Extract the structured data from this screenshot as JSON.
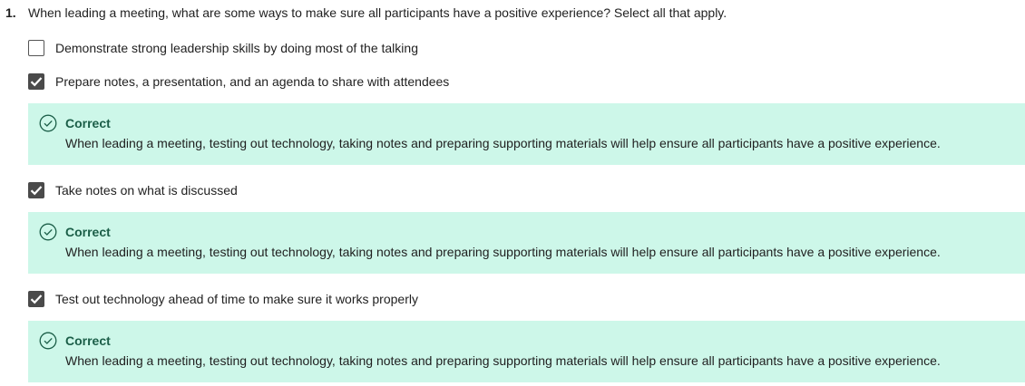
{
  "question": {
    "number": "1.",
    "text": "When leading a meeting, what are some ways to make sure all participants have a positive experience? Select all that apply."
  },
  "options": [
    {
      "label": "Demonstrate strong leadership skills by doing most of the talking",
      "checked": false
    },
    {
      "label": "Prepare notes, a presentation, and an agenda to share with attendees",
      "checked": true
    },
    {
      "label": "Take notes on what is discussed",
      "checked": true
    },
    {
      "label": "Test out technology ahead of time to make sure it works properly",
      "checked": true
    }
  ],
  "feedback": [
    {
      "title": "Correct",
      "text": "When leading a meeting, testing out technology, taking notes and preparing supporting materials will help ensure all participants have a positive experience."
    },
    {
      "title": "Correct",
      "text": "When leading a meeting, testing out technology, taking notes and preparing supporting materials will help ensure all participants have a positive experience."
    },
    {
      "title": "Correct",
      "text": "When leading a meeting, testing out technology, taking notes and preparing supporting materials will help ensure all participants have a positive experience."
    }
  ],
  "icons": {
    "checkmark": "checkmark-icon",
    "feedback": "check-circle-icon"
  },
  "colors": {
    "feedback_bg": "#cdf7e9",
    "feedback_accent": "#1b5e48",
    "checkbox_checked": "#4a4a4a"
  }
}
